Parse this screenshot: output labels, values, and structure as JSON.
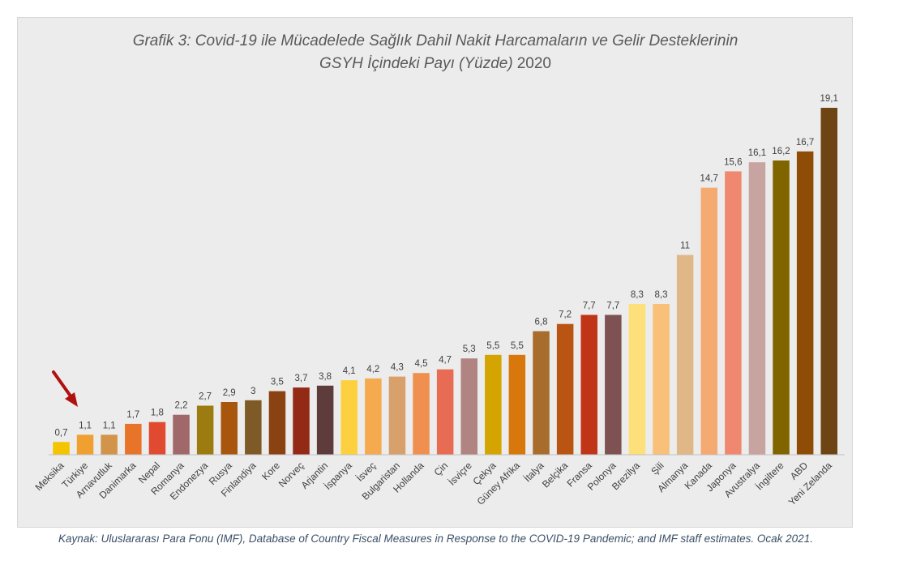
{
  "chart_data": {
    "type": "bar",
    "title": "Grafik 3: Covid-19 ile Mücadelede Sağlık Dahil Nakit Harcamaların ve Gelir Desteklerinin",
    "subtitle": "GSYH İçindeki Payı (Yüzde)",
    "subtitle_year": "2020",
    "categories": [
      "Meksika",
      "Türkiye",
      "Arnavutluk",
      "Danimarka",
      "Nepal",
      "Romanya",
      "Endonezya",
      "Rusya",
      "Finlandiya",
      "Kore",
      "Norveç",
      "Arjantin",
      "İspanya",
      "İsveç",
      "Bulgaristan",
      "Hollanda",
      "Çin",
      "İsviçre",
      "Çekya",
      "Güney Afrika",
      "İtalya",
      "Belçika",
      "Fransa",
      "Polonya",
      "Brezilya",
      "Şili",
      "Almanya",
      "Kanada",
      "Japonya",
      "Avustralya",
      "İngiltere",
      "ABD",
      "Yeni Zelanda"
    ],
    "values": [
      0.7,
      1.1,
      1.1,
      1.7,
      1.8,
      2.2,
      2.7,
      2.9,
      3,
      3.5,
      3.7,
      3.8,
      4.1,
      4.2,
      4.3,
      4.5,
      4.7,
      5.3,
      5.5,
      5.5,
      6.8,
      7.2,
      7.7,
      7.7,
      8.3,
      8.3,
      11,
      14.7,
      15.6,
      16.1,
      16.2,
      16.7,
      19.1
    ],
    "value_labels": [
      "0,7",
      "1,1",
      "1,1",
      "1,7",
      "1,8",
      "2,2",
      "2,7",
      "2,9",
      "3",
      "3,5",
      "3,7",
      "3,8",
      "4,1",
      "4,2",
      "4,3",
      "4,5",
      "4,7",
      "5,3",
      "5,5",
      "5,5",
      "6,8",
      "7,2",
      "7,7",
      "7,7",
      "8,3",
      "8,3",
      "11",
      "14,7",
      "15,6",
      "16,1",
      "16,2",
      "16,7",
      "19,1"
    ],
    "colors": [
      "#f5c400",
      "#f0a030",
      "#d2944a",
      "#e8742a",
      "#e04a30",
      "#a06868",
      "#9c7c10",
      "#a8560e",
      "#7e5a26",
      "#8a4212",
      "#922a16",
      "#5e3c3c",
      "#fdd040",
      "#f5aa50",
      "#d8a06a",
      "#f09050",
      "#e86c54",
      "#b08480",
      "#d4a400",
      "#d8780c",
      "#a86c2c",
      "#ba5412",
      "#c03418",
      "#7e5252",
      "#fde07a",
      "#f8c078",
      "#e0b888",
      "#f4aa70",
      "#f08870",
      "#c8a4a0",
      "#806400",
      "#8e4c06",
      "#6e4414"
    ],
    "ylim": [
      0,
      20
    ],
    "grid": false,
    "legend": "none",
    "highlight_category": "Türkiye"
  },
  "source": "Kaynak: Uluslararası Para Fonu (IMF), Database of Country Fiscal Measures in Response to the COVID-19 Pandemic; and IMF staff estimates. Ocak 2021."
}
